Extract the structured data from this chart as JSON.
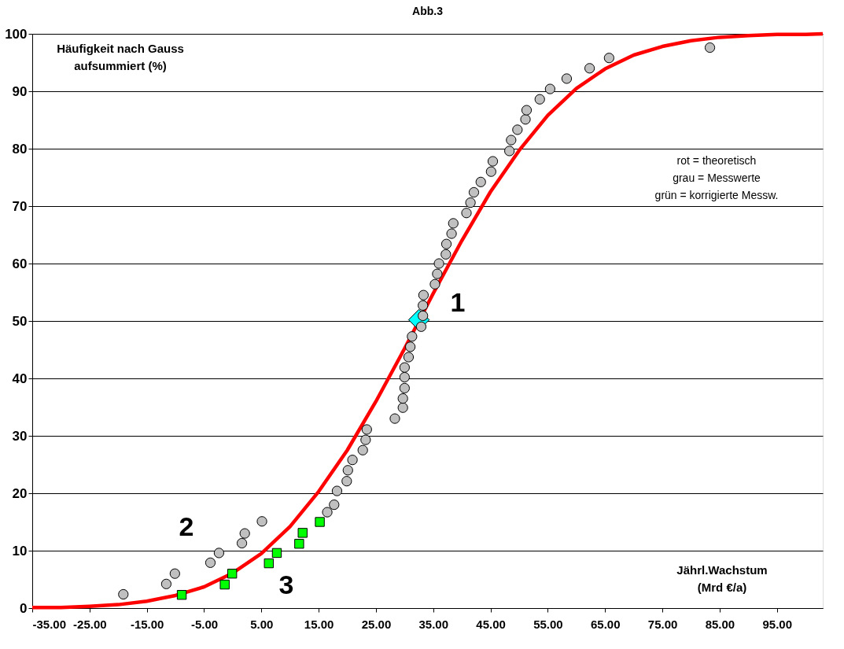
{
  "chart_data": {
    "type": "scatter",
    "title": "Abb.3",
    "xlabel": "Jährl.Wachstum\n(Mrd €/a)",
    "ylabel": "Häufigkeit nach Gauss\naufsummiert  (%)",
    "xlim": [
      -35,
      103
    ],
    "ylim": [
      0,
      100
    ],
    "xticks": [
      {
        "value": -35,
        "label": "-35.00"
      },
      {
        "value": -25,
        "label": "-25.00"
      },
      {
        "value": -15,
        "label": "-15.00"
      },
      {
        "value": -5,
        "label": "-5.00"
      },
      {
        "value": 5,
        "label": "5.00"
      },
      {
        "value": 15,
        "label": "15.00"
      },
      {
        "value": 25,
        "label": "25.00"
      },
      {
        "value": 35,
        "label": "35.00"
      },
      {
        "value": 45,
        "label": "45.00"
      },
      {
        "value": 55,
        "label": "55.00"
      },
      {
        "value": 65,
        "label": "65.00"
      },
      {
        "value": 75,
        "label": "75.00"
      },
      {
        "value": 85,
        "label": "85.00"
      },
      {
        "value": 95,
        "label": "95.00"
      }
    ],
    "yticks": [
      0,
      10,
      20,
      30,
      40,
      50,
      60,
      70,
      80,
      90,
      100
    ],
    "grid": "y",
    "series": [
      {
        "type": "line",
        "color": "#ff0000",
        "marker": "none",
        "line_style": "solid",
        "x": [
          -35,
          -30,
          -25,
          -20,
          -15,
          -10,
          -5,
          0,
          5,
          10,
          15,
          20,
          25,
          30,
          35,
          40,
          45,
          50,
          55,
          60,
          65,
          70,
          75,
          80,
          85,
          90,
          95,
          100,
          103
        ],
        "values": [
          0.1,
          0.1,
          0.3,
          0.6,
          1.2,
          2.2,
          3.7,
          6.1,
          9.5,
          14.2,
          20.3,
          27.5,
          36.0,
          45.2,
          54.8,
          64.0,
          72.5,
          79.7,
          85.8,
          90.5,
          93.9,
          96.3,
          97.8,
          98.8,
          99.4,
          99.7,
          99.9,
          99.9,
          100.0
        ]
      },
      {
        "type": "scatter",
        "color": "#00ffff",
        "marker": "diamond",
        "x": [
          32.5
        ],
        "values": [
          50.2
        ]
      },
      {
        "type": "scatter",
        "color": "#c0c0c0",
        "marker": "circle",
        "x": [
          -19.1,
          -11.6,
          -10.1,
          -3.9,
          -2.4,
          1.6,
          2.1,
          5.1,
          16.5,
          17.7,
          18.2,
          19.9,
          20.1,
          20.9,
          22.7,
          23.2,
          23.4,
          28.3,
          29.7,
          29.7,
          30.0,
          30.0,
          30.0,
          30.7,
          31.0,
          31.3,
          32.9,
          33.2,
          33.2,
          33.3,
          35.3,
          35.7,
          36.0,
          37.2,
          37.3,
          38.2,
          38.5,
          40.8,
          41.5,
          42.1,
          43.3,
          45.1,
          45.4,
          48.3,
          48.6,
          49.7,
          51.1,
          51.3,
          53.6,
          55.4,
          58.3,
          62.3,
          65.7,
          83.3
        ],
        "values": [
          2.4,
          4.2,
          6.0,
          7.9,
          9.6,
          11.3,
          13.0,
          15.1,
          16.7,
          18.0,
          20.4,
          22.1,
          24.0,
          25.8,
          27.5,
          29.3,
          31.1,
          33.0,
          34.9,
          36.5,
          38.3,
          40.2,
          41.9,
          43.7,
          45.5,
          47.3,
          49.0,
          50.9,
          52.7,
          54.5,
          56.4,
          58.2,
          60.0,
          61.6,
          63.4,
          65.2,
          67.0,
          68.8,
          70.6,
          72.4,
          74.2,
          76.0,
          77.8,
          79.6,
          81.5,
          83.3,
          85.1,
          86.7,
          88.6,
          90.4,
          92.2,
          94.0,
          95.8,
          97.6
        ]
      },
      {
        "type": "scatter",
        "color": "#00ff00",
        "marker": "square",
        "x": [
          -8.9,
          -1.4,
          -0.1,
          6.3,
          7.7,
          11.6,
          12.2,
          15.2
        ],
        "values": [
          2.3,
          4.1,
          6.0,
          7.8,
          9.6,
          11.2,
          13.1,
          15.0
        ]
      }
    ],
    "annotations": [
      "1",
      "2",
      "3",
      "rot   =   theoretisch\ngrau   =   Messwerte\ngrün = korrigierte Messw."
    ]
  }
}
